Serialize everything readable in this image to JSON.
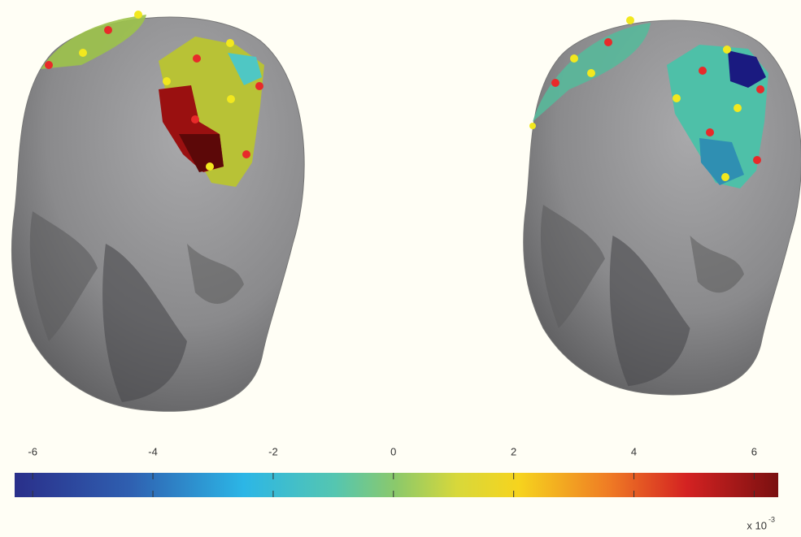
{
  "colorbar": {
    "lim": [
      -6.3,
      6.4
    ],
    "ticks": [
      -6,
      -4,
      -2,
      0,
      2,
      4,
      6
    ],
    "multiplier": "x 10",
    "exponent": "-3"
  }
}
